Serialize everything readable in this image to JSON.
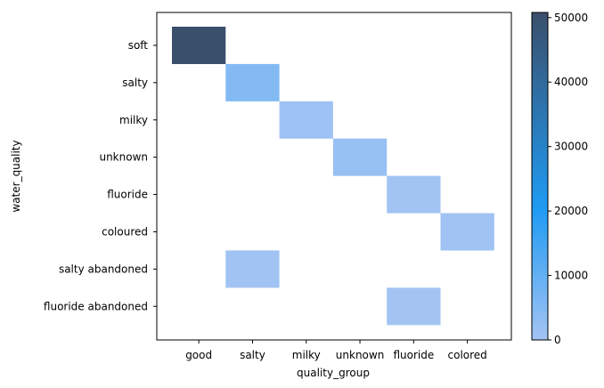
{
  "chart_data": {
    "type": "heatmap",
    "title": "",
    "xlabel": "quality_group",
    "ylabel": "water_quality",
    "x_categories": [
      "good",
      "salty",
      "milky",
      "unknown",
      "fluoride",
      "colored"
    ],
    "y_categories": [
      "soft",
      "salty",
      "milky",
      "unknown",
      "fluoride",
      "coloured",
      "salty abandoned",
      "fluoride abandoned"
    ],
    "cells": [
      {
        "x": "good",
        "y": "soft",
        "value": 50800
      },
      {
        "x": "salty",
        "y": "salty",
        "value": 4850
      },
      {
        "x": "milky",
        "y": "milky",
        "value": 800
      },
      {
        "x": "unknown",
        "y": "unknown",
        "value": 1900
      },
      {
        "x": "fluoride",
        "y": "fluoride",
        "value": 200
      },
      {
        "x": "colored",
        "y": "coloured",
        "value": 490
      },
      {
        "x": "salty",
        "y": "salty abandoned",
        "value": 340
      },
      {
        "x": "fluoride",
        "y": "fluoride abandoned",
        "value": 17
      }
    ],
    "colorbar": {
      "vmin": 0,
      "vmax": 50800,
      "ticks": [
        0,
        10000,
        20000,
        30000,
        40000,
        50000
      ],
      "color_stops": [
        "#a3c4f3",
        "#1f9bf3",
        "#3a4f6b"
      ]
    },
    "grid": false
  }
}
